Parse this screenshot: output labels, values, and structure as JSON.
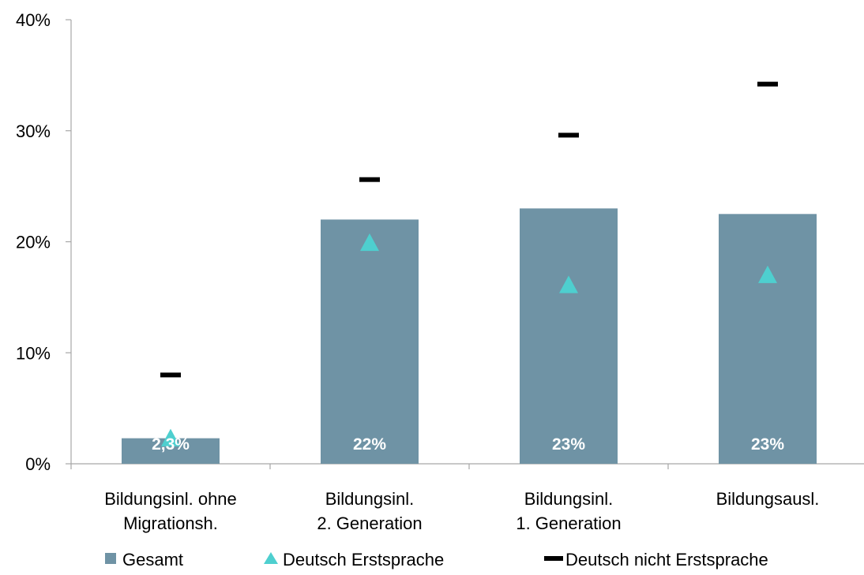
{
  "chart_data": {
    "type": "bar",
    "categories": [
      [
        "Bildungsinl. ohne",
        "Migrationsh."
      ],
      [
        "Bildungsinl.",
        "2. Generation"
      ],
      [
        "Bildungsinl.",
        "1. Generation"
      ],
      [
        "Bildungsausl."
      ]
    ],
    "ylim": [
      0,
      40
    ],
    "yticks": [
      0,
      10,
      20,
      30,
      40
    ],
    "ytick_labels": [
      "0%",
      "10%",
      "20%",
      "30%",
      "40%"
    ],
    "grid": false,
    "legend_position": "bottom",
    "series": [
      {
        "name": "Gesamt",
        "type": "bar",
        "color": "#6f93a5",
        "values": [
          2.3,
          22,
          23,
          22.5
        ],
        "data_labels": [
          "2,3%",
          "22%",
          "23%",
          "23%"
        ]
      },
      {
        "name": "Deutsch Erstsprache",
        "type": "scatter",
        "marker": "triangle",
        "color": "#4ecfcf",
        "values": [
          2.3,
          19.9,
          16.1,
          17.0
        ]
      },
      {
        "name": "Deutsch nicht Erstsprache",
        "type": "scatter",
        "marker": "dash",
        "color": "#000000",
        "values": [
          8.0,
          25.6,
          29.6,
          34.2
        ]
      }
    ]
  }
}
